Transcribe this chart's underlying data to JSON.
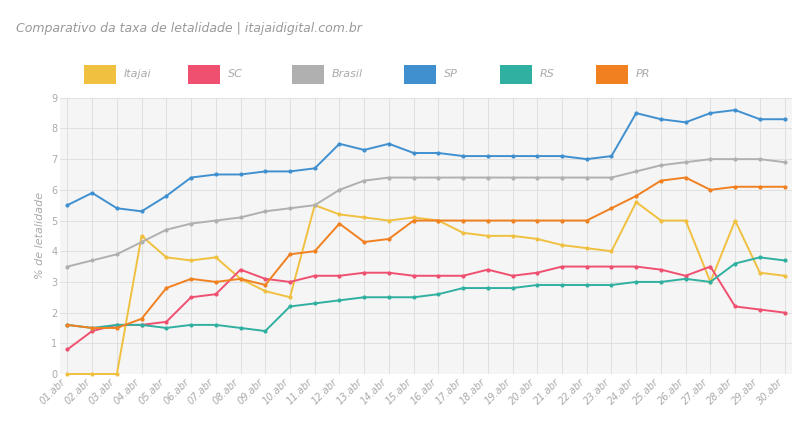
{
  "title": "Comparativo da taxa de letalidade | itajaidigital.com.br",
  "ylabel": "% de letalidade",
  "ylim": [
    0,
    9
  ],
  "yticks": [
    0,
    1,
    2,
    3,
    4,
    5,
    6,
    7,
    8,
    9
  ],
  "background_color": "#ffffff",
  "header_bg_color": "#f0f0f0",
  "plot_bg_color": "#f5f5f5",
  "grid_color": "#dddddd",
  "dates": [
    "01.abr",
    "02.abr",
    "03.abr",
    "04.abr",
    "05.abr",
    "06.abr",
    "07.abr",
    "08.abr",
    "09.abr",
    "10.abr",
    "11.abr",
    "12.abr",
    "13.abr",
    "14.abr",
    "15.abr",
    "16.abr",
    "17.abr",
    "18.abr",
    "19.abr",
    "20.abr",
    "21.abr",
    "22.abr",
    "23.abr",
    "24.abr",
    "25.abr",
    "26.abr",
    "27.abr",
    "28.abr",
    "29.abr",
    "30.abr"
  ],
  "series": {
    "Itajai": {
      "color": "#f0c040",
      "values": [
        0.0,
        0.0,
        0.0,
        4.5,
        3.8,
        3.7,
        3.8,
        3.1,
        2.7,
        2.5,
        5.5,
        5.2,
        5.1,
        5.0,
        5.1,
        5.0,
        4.6,
        4.5,
        4.5,
        4.4,
        4.2,
        4.1,
        4.0,
        5.6,
        5.0,
        5.0,
        3.0,
        5.0,
        3.3,
        3.2
      ]
    },
    "SC": {
      "color": "#f05070",
      "values": [
        0.8,
        1.4,
        1.6,
        1.6,
        1.7,
        2.5,
        2.6,
        3.4,
        3.1,
        3.0,
        3.2,
        3.2,
        3.3,
        3.3,
        3.2,
        3.2,
        3.2,
        3.4,
        3.2,
        3.3,
        3.5,
        3.5,
        3.5,
        3.5,
        3.4,
        3.2,
        3.5,
        2.2,
        2.1,
        2.0
      ]
    },
    "Brasil": {
      "color": "#b0b0b0",
      "values": [
        3.5,
        3.7,
        3.9,
        4.3,
        4.7,
        4.9,
        5.0,
        5.1,
        5.3,
        5.4,
        5.5,
        6.0,
        6.3,
        6.4,
        6.4,
        6.4,
        6.4,
        6.4,
        6.4,
        6.4,
        6.4,
        6.4,
        6.4,
        6.6,
        6.8,
        6.9,
        7.0,
        7.0,
        7.0,
        6.9
      ]
    },
    "SP": {
      "color": "#4090d0",
      "values": [
        5.5,
        5.9,
        5.4,
        5.3,
        5.8,
        6.4,
        6.5,
        6.5,
        6.6,
        6.6,
        6.7,
        7.5,
        7.3,
        7.5,
        7.2,
        7.2,
        7.1,
        7.1,
        7.1,
        7.1,
        7.1,
        7.0,
        7.1,
        8.5,
        8.3,
        8.2,
        8.5,
        8.6,
        8.3,
        8.3
      ]
    },
    "RS": {
      "color": "#30b0a0",
      "values": [
        1.6,
        1.5,
        1.6,
        1.6,
        1.5,
        1.6,
        1.6,
        1.5,
        1.4,
        2.2,
        2.3,
        2.4,
        2.5,
        2.5,
        2.5,
        2.6,
        2.8,
        2.8,
        2.8,
        2.9,
        2.9,
        2.9,
        2.9,
        3.0,
        3.0,
        3.1,
        3.0,
        3.6,
        3.8,
        3.7
      ]
    },
    "PR": {
      "color": "#f08020",
      "values": [
        1.6,
        1.5,
        1.5,
        1.8,
        2.8,
        3.1,
        3.0,
        3.1,
        2.9,
        3.9,
        4.0,
        4.9,
        4.3,
        4.4,
        5.0,
        5.0,
        5.0,
        5.0,
        5.0,
        5.0,
        5.0,
        5.0,
        5.4,
        5.8,
        6.3,
        6.4,
        6.0,
        6.1,
        6.1,
        6.1
      ]
    }
  },
  "legend_order": [
    "Itajai",
    "SC",
    "Brasil",
    "SP",
    "RS",
    "PR"
  ],
  "title_fontsize": 9,
  "axis_fontsize": 8,
  "tick_fontsize": 7,
  "legend_fontsize": 8
}
